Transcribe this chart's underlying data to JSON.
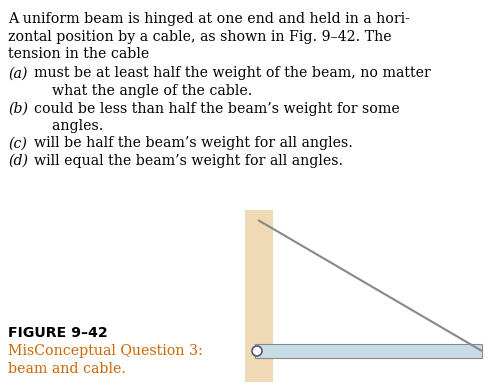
{
  "background_color": "#ffffff",
  "wall_color": "#f0d9b5",
  "beam_color": "#c8dce8",
  "beam_edge_color": "#888888",
  "cable_color": "#888888",
  "hinge_color": "#555577",
  "text_color": "#000000",
  "caption_color": "#cc6600",
  "title_lines": [
    "A uniform beam is hinged at one end and held in a hori-",
    "zontal position by a cable, as shown in Fig. 9–42. The",
    "tension in the cable"
  ],
  "options": [
    [
      "(a)",
      "must be at least half the weight of the beam, no matter"
    ],
    [
      "",
      "    what the angle of the cable."
    ],
    [
      "(b)",
      "could be less than half the beam’s weight for some"
    ],
    [
      "",
      "    angles."
    ],
    [
      "(c)",
      "will be half the beam’s weight for all angles."
    ],
    [
      "(d)",
      "will equal the beam’s weight for all angles."
    ]
  ],
  "caption_bold": "FIGURE 9–42",
  "caption_lines": [
    "MisConceptual Question 3:",
    "beam and cable."
  ],
  "text_fontsize": 10.2,
  "caption_fontsize": 10.2,
  "fig_width": 4.95,
  "fig_height": 3.86
}
